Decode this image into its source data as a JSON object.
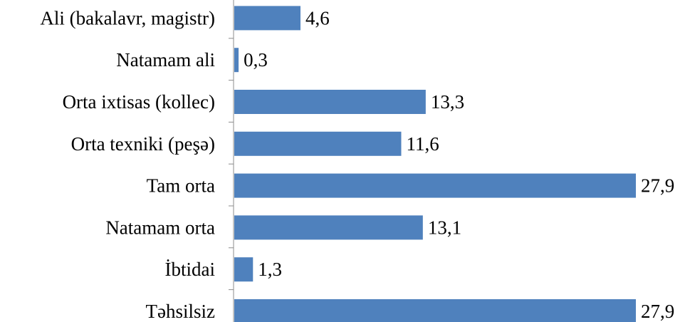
{
  "chart_data": {
    "type": "bar",
    "orientation": "horizontal",
    "title": "",
    "xlabel": "",
    "ylabel": "",
    "categories": [
      "Ali (bakalavr, magistr)",
      "Natamam ali",
      "Orta ixtisas (kollec)",
      "Orta texniki (peşə)",
      "Tam orta",
      "Natamam orta",
      "İbtidai",
      "Təhsilsiz"
    ],
    "values": [
      4.6,
      0.3,
      13.3,
      11.6,
      27.9,
      13.1,
      1.3,
      27.9
    ],
    "value_labels": [
      "4,6",
      "0,3",
      "13,3",
      "11,6",
      "27,9",
      "13,1",
      "1,3",
      "27,9"
    ],
    "xlim": [
      0,
      27.9
    ],
    "grid": false,
    "legend": "none",
    "bar_color": "#4f81bd"
  }
}
